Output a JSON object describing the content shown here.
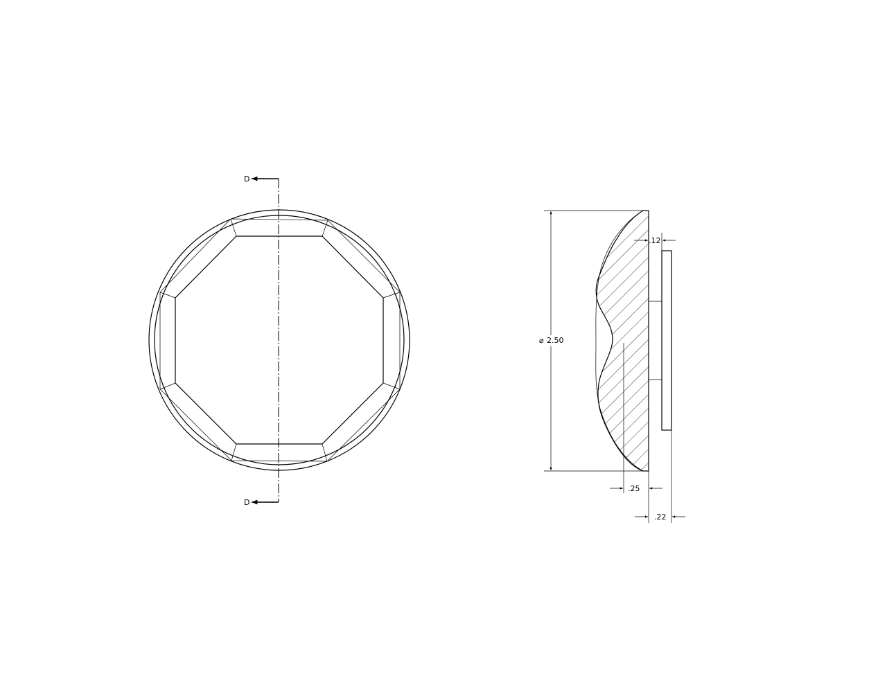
{
  "views": {
    "front": {
      "section_marker_top": "D",
      "section_marker_bottom": "D"
    },
    "section": {
      "dimensions": {
        "diameter": "2.50",
        "inner_offset": ".25",
        "plate_thickness": ".22",
        "gap": ".12"
      }
    }
  }
}
